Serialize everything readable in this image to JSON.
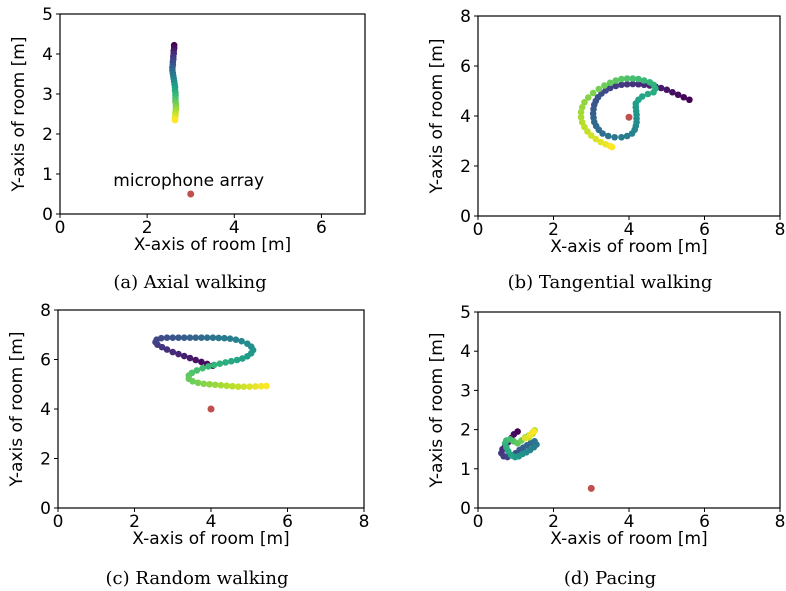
{
  "mic_color": "#c0504d",
  "colormap": "viridis",
  "chart_data": [
    {
      "type": "scatter",
      "caption": "(a) Axial walking",
      "xlabel": "X-axis of room [m]",
      "ylabel": "Y-axis of room [m]",
      "xlim": [
        0,
        7
      ],
      "ylim": [
        0,
        5
      ],
      "xticks": [
        "0",
        "2",
        "4",
        "6"
      ],
      "yticks": [
        "0",
        "1",
        "2",
        "3",
        "4",
        "5"
      ],
      "annotation": "microphone array",
      "microphone": [
        3.0,
        0.5
      ],
      "trajectory": [
        [
          2.62,
          4.22
        ],
        [
          2.62,
          4.15
        ],
        [
          2.61,
          4.08
        ],
        [
          2.61,
          4.01
        ],
        [
          2.6,
          3.94
        ],
        [
          2.6,
          3.87
        ],
        [
          2.59,
          3.8
        ],
        [
          2.59,
          3.73
        ],
        [
          2.58,
          3.66
        ],
        [
          2.58,
          3.59
        ],
        [
          2.59,
          3.52
        ],
        [
          2.6,
          3.45
        ],
        [
          2.61,
          3.38
        ],
        [
          2.62,
          3.31
        ],
        [
          2.63,
          3.24
        ],
        [
          2.64,
          3.17
        ],
        [
          2.64,
          3.1
        ],
        [
          2.65,
          3.03
        ],
        [
          2.65,
          2.96
        ],
        [
          2.65,
          2.89
        ],
        [
          2.65,
          2.82
        ],
        [
          2.66,
          2.75
        ],
        [
          2.66,
          2.68
        ],
        [
          2.66,
          2.61
        ],
        [
          2.65,
          2.54
        ],
        [
          2.65,
          2.47
        ],
        [
          2.64,
          2.4
        ],
        [
          2.64,
          2.35
        ]
      ],
      "colors_order": "dark-to-yellow-to-green"
    },
    {
      "type": "scatter",
      "caption": "(b) Tangential walking",
      "xlabel": "X-axis of room [m]",
      "ylabel": "Y-axis of room [m]",
      "xlim": [
        0,
        8
      ],
      "ylim": [
        0,
        8
      ],
      "xticks": [
        "0",
        "2",
        "4",
        "6",
        "8"
      ],
      "yticks": [
        "0",
        "2",
        "4",
        "6",
        "8"
      ],
      "microphone": [
        4.0,
        3.95
      ],
      "trajectory": [
        [
          5.6,
          4.65
        ],
        [
          5.45,
          4.75
        ],
        [
          5.3,
          4.85
        ],
        [
          5.15,
          4.95
        ],
        [
          5.0,
          5.05
        ],
        [
          4.85,
          5.12
        ],
        [
          4.7,
          5.18
        ],
        [
          4.55,
          5.22
        ],
        [
          4.4,
          5.25
        ],
        [
          4.25,
          5.27
        ],
        [
          4.1,
          5.28
        ],
        [
          3.95,
          5.27
        ],
        [
          3.8,
          5.25
        ],
        [
          3.65,
          5.2
        ],
        [
          3.5,
          5.12
        ],
        [
          3.38,
          5.02
        ],
        [
          3.27,
          4.9
        ],
        [
          3.18,
          4.75
        ],
        [
          3.12,
          4.6
        ],
        [
          3.08,
          4.45
        ],
        [
          3.06,
          4.28
        ],
        [
          3.05,
          4.1
        ],
        [
          3.06,
          3.93
        ],
        [
          3.08,
          3.76
        ],
        [
          3.13,
          3.6
        ],
        [
          3.2,
          3.45
        ],
        [
          3.3,
          3.3
        ],
        [
          3.45,
          3.2
        ],
        [
          3.62,
          3.15
        ],
        [
          3.8,
          3.15
        ],
        [
          3.95,
          3.2
        ],
        [
          4.08,
          3.3
        ],
        [
          4.15,
          3.45
        ],
        [
          4.18,
          3.6
        ],
        [
          4.2,
          3.75
        ],
        [
          4.2,
          3.9
        ],
        [
          4.2,
          4.05
        ],
        [
          4.19,
          4.2
        ],
        [
          4.18,
          4.35
        ],
        [
          4.18,
          4.5
        ],
        [
          4.25,
          4.65
        ],
        [
          4.35,
          4.78
        ],
        [
          4.5,
          4.88
        ],
        [
          4.65,
          4.95
        ],
        [
          4.7,
          5.1
        ],
        [
          4.65,
          5.25
        ],
        [
          4.55,
          5.35
        ],
        [
          4.4,
          5.42
        ],
        [
          4.25,
          5.48
        ],
        [
          4.1,
          5.5
        ],
        [
          3.95,
          5.5
        ],
        [
          3.8,
          5.48
        ],
        [
          3.65,
          5.42
        ],
        [
          3.5,
          5.33
        ],
        [
          3.35,
          5.22
        ],
        [
          3.2,
          5.08
        ],
        [
          3.05,
          4.92
        ],
        [
          2.92,
          4.74
        ],
        [
          2.82,
          4.55
        ],
        [
          2.76,
          4.35
        ],
        [
          2.73,
          4.15
        ],
        [
          2.73,
          3.95
        ],
        [
          2.76,
          3.75
        ],
        [
          2.82,
          3.56
        ],
        [
          2.9,
          3.38
        ],
        [
          3.0,
          3.22
        ],
        [
          3.12,
          3.08
        ],
        [
          3.25,
          2.96
        ],
        [
          3.38,
          2.87
        ],
        [
          3.5,
          2.8
        ],
        [
          3.55,
          2.76
        ]
      ]
    },
    {
      "type": "scatter",
      "caption": "(c) Random walking",
      "xlabel": "X-axis of room [m]",
      "ylabel": "Y-axis of room [m]",
      "xlim": [
        0,
        8
      ],
      "ylim": [
        0,
        8
      ],
      "xticks": [
        "0",
        "2",
        "4",
        "6",
        "8"
      ],
      "yticks": [
        "0",
        "2",
        "4",
        "6",
        "8"
      ],
      "microphone": [
        4.0,
        4.0
      ],
      "trajectory": [
        [
          4.05,
          5.75
        ],
        [
          3.9,
          5.82
        ],
        [
          3.75,
          5.9
        ],
        [
          3.6,
          5.98
        ],
        [
          3.45,
          6.06
        ],
        [
          3.3,
          6.14
        ],
        [
          3.15,
          6.22
        ],
        [
          3.0,
          6.3
        ],
        [
          2.85,
          6.4
        ],
        [
          2.72,
          6.5
        ],
        [
          2.6,
          6.6
        ],
        [
          2.55,
          6.7
        ],
        [
          2.58,
          6.8
        ],
        [
          2.7,
          6.86
        ],
        [
          2.85,
          6.88
        ],
        [
          3.0,
          6.88
        ],
        [
          3.15,
          6.88
        ],
        [
          3.3,
          6.88
        ],
        [
          3.45,
          6.88
        ],
        [
          3.6,
          6.88
        ],
        [
          3.75,
          6.88
        ],
        [
          3.9,
          6.88
        ],
        [
          4.05,
          6.88
        ],
        [
          4.2,
          6.87
        ],
        [
          4.35,
          6.86
        ],
        [
          4.5,
          6.84
        ],
        [
          4.65,
          6.8
        ],
        [
          4.8,
          6.74
        ],
        [
          4.95,
          6.64
        ],
        [
          5.05,
          6.52
        ],
        [
          5.1,
          6.38
        ],
        [
          5.05,
          6.25
        ],
        [
          4.95,
          6.13
        ],
        [
          4.82,
          6.04
        ],
        [
          4.68,
          5.98
        ],
        [
          4.53,
          5.93
        ],
        [
          4.38,
          5.88
        ],
        [
          4.23,
          5.83
        ],
        [
          4.08,
          5.78
        ],
        [
          3.93,
          5.72
        ],
        [
          3.78,
          5.65
        ],
        [
          3.63,
          5.56
        ],
        [
          3.5,
          5.46
        ],
        [
          3.42,
          5.35
        ],
        [
          3.42,
          5.22
        ],
        [
          3.52,
          5.12
        ],
        [
          3.66,
          5.06
        ],
        [
          3.81,
          5.02
        ],
        [
          3.96,
          5.0
        ],
        [
          4.11,
          4.98
        ],
        [
          4.26,
          4.96
        ],
        [
          4.41,
          4.94
        ],
        [
          4.56,
          4.92
        ],
        [
          4.71,
          4.9
        ],
        [
          4.86,
          4.9
        ],
        [
          5.01,
          4.9
        ],
        [
          5.16,
          4.91
        ],
        [
          5.31,
          4.92
        ],
        [
          5.45,
          4.93
        ]
      ]
    },
    {
      "type": "scatter",
      "caption": "(d) Pacing",
      "xlabel": "X-axis of room [m]",
      "ylabel": "Y-axis of room [m]",
      "xlim": [
        0,
        8
      ],
      "ylim": [
        0,
        5
      ],
      "xticks": [
        "0",
        "2",
        "4",
        "6",
        "8"
      ],
      "yticks": [
        "0",
        "1",
        "2",
        "3",
        "4",
        "5"
      ],
      "microphone": [
        3.0,
        0.5
      ],
      "trajectory": [
        [
          1.05,
          1.95
        ],
        [
          0.95,
          1.88
        ],
        [
          0.88,
          1.78
        ],
        [
          0.8,
          1.68
        ],
        [
          0.72,
          1.58
        ],
        [
          0.65,
          1.5
        ],
        [
          0.62,
          1.4
        ],
        [
          0.68,
          1.32
        ],
        [
          0.78,
          1.3
        ],
        [
          0.9,
          1.34
        ],
        [
          1.0,
          1.4
        ],
        [
          1.1,
          1.48
        ],
        [
          1.2,
          1.54
        ],
        [
          1.3,
          1.6
        ],
        [
          1.4,
          1.66
        ],
        [
          1.5,
          1.7
        ],
        [
          1.55,
          1.62
        ],
        [
          1.48,
          1.55
        ],
        [
          1.38,
          1.48
        ],
        [
          1.28,
          1.42
        ],
        [
          1.18,
          1.38
        ],
        [
          1.08,
          1.32
        ],
        [
          0.98,
          1.3
        ],
        [
          0.88,
          1.35
        ],
        [
          0.8,
          1.45
        ],
        [
          0.75,
          1.55
        ],
        [
          0.72,
          1.65
        ],
        [
          0.75,
          1.72
        ],
        [
          0.85,
          1.75
        ],
        [
          0.95,
          1.7
        ],
        [
          1.05,
          1.65
        ],
        [
          1.15,
          1.72
        ],
        [
          1.25,
          1.8
        ],
        [
          1.35,
          1.85
        ],
        [
          1.45,
          1.9
        ],
        [
          1.5,
          1.98
        ],
        [
          1.45,
          1.93
        ],
        [
          1.35,
          1.8
        ],
        [
          1.25,
          1.78
        ],
        [
          1.38,
          1.86
        ],
        [
          1.48,
          1.95
        ]
      ]
    }
  ]
}
